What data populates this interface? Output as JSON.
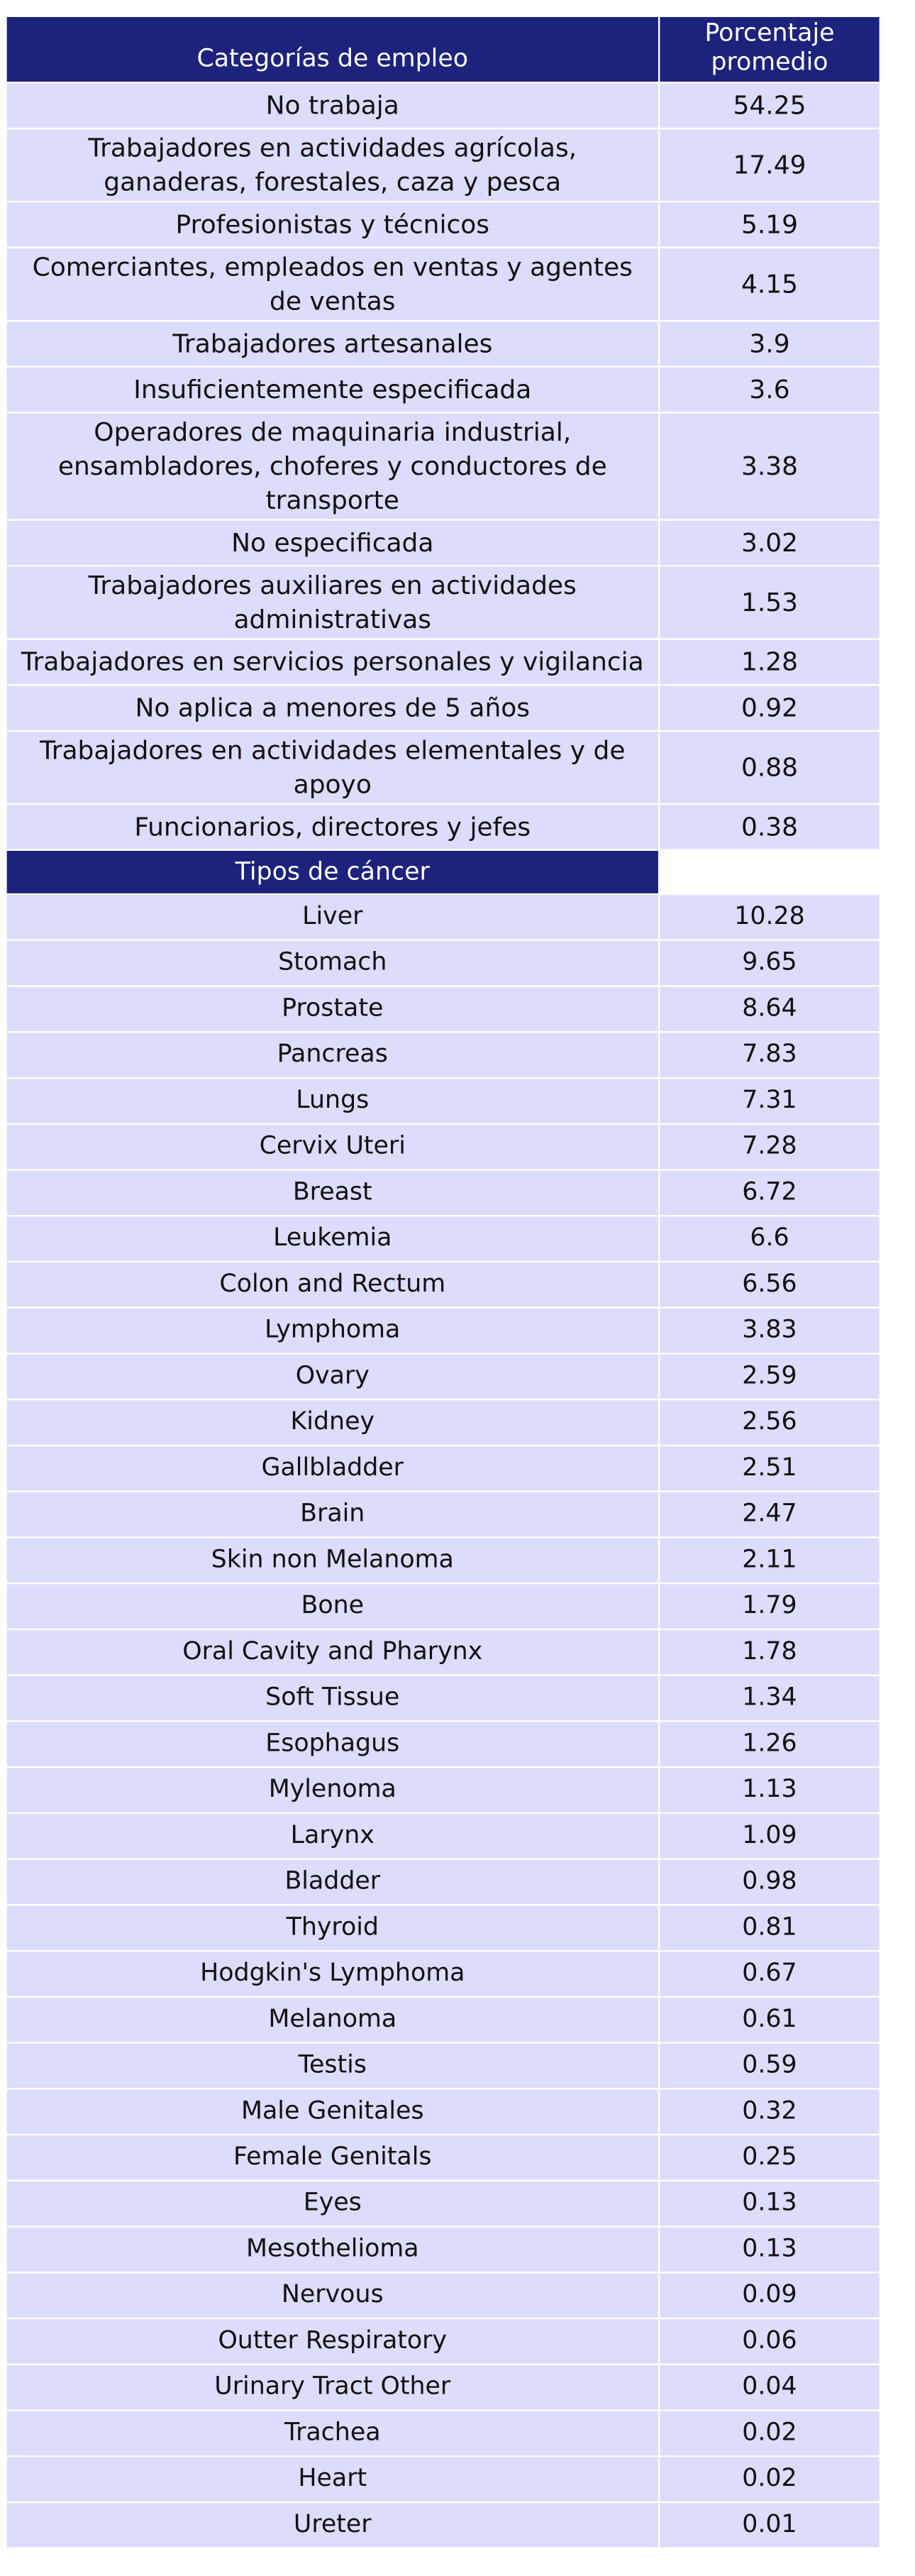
{
  "header": {
    "category_label": "Categorías de empleo",
    "percent_label_line1": "Porcentaje",
    "percent_label_line2": "promedio"
  },
  "employment_rows": [
    {
      "category": "No trabaja",
      "value": "54.25"
    },
    {
      "category": "Trabajadores en actividades agrícolas, ganaderas, forestales, caza y pesca",
      "value": "17.49"
    },
    {
      "category": "Profesionistas y técnicos",
      "value": "5.19"
    },
    {
      "category": "Comerciantes, empleados en ventas y agentes de ventas",
      "value": "4.15"
    },
    {
      "category": "Trabajadores artesanales",
      "value": "3.9"
    },
    {
      "category": "Insuficientemente especificada",
      "value": "3.6"
    },
    {
      "category": "Operadores de maquinaria industrial, ensambladores, choferes y conductores de transporte",
      "value": "3.38"
    },
    {
      "category": "No especificada",
      "value": "3.02"
    },
    {
      "category": "Trabajadores auxiliares en actividades administrativas",
      "value": "1.53"
    },
    {
      "category": "Trabajadores en servicios personales y vigilancia",
      "value": "1.28"
    },
    {
      "category": "No aplica a menores de 5 años",
      "value": "0.92"
    },
    {
      "category": "Trabajadores en actividades elementales y de apoyo",
      "value": "0.88"
    },
    {
      "category": "Funcionarios, directores y jefes",
      "value": "0.38"
    }
  ],
  "cancer_header": "Tipos de cáncer",
  "cancer_rows": [
    {
      "category": "Liver",
      "value": "10.28"
    },
    {
      "category": "Stomach",
      "value": "9.65"
    },
    {
      "category": "Prostate",
      "value": "8.64"
    },
    {
      "category": "Pancreas",
      "value": "7.83"
    },
    {
      "category": "Lungs",
      "value": "7.31"
    },
    {
      "category": "Cervix Uteri",
      "value": "7.28"
    },
    {
      "category": "Breast",
      "value": "6.72"
    },
    {
      "category": "Leukemia",
      "value": "6.6"
    },
    {
      "category": "Colon and Rectum",
      "value": "6.56"
    },
    {
      "category": "Lymphoma",
      "value": "3.83"
    },
    {
      "category": "Ovary",
      "value": "2.59"
    },
    {
      "category": "Kidney",
      "value": "2.56"
    },
    {
      "category": "Gallbladder",
      "value": "2.51"
    },
    {
      "category": "Brain",
      "value": "2.47"
    },
    {
      "category": "Skin non Melanoma",
      "value": "2.11"
    },
    {
      "category": "Bone",
      "value": "1.79"
    },
    {
      "category": "Oral Cavity and Pharynx",
      "value": "1.78"
    },
    {
      "category": "Soft Tissue",
      "value": "1.34"
    },
    {
      "category": "Esophagus",
      "value": "1.26"
    },
    {
      "category": "Mylenoma",
      "value": "1.13"
    },
    {
      "category": "Larynx",
      "value": "1.09"
    },
    {
      "category": "Bladder",
      "value": "0.98"
    },
    {
      "category": "Thyroid",
      "value": "0.81"
    },
    {
      "category": "Hodgkin's Lymphoma",
      "value": "0.67"
    },
    {
      "category": "Melanoma",
      "value": "0.61"
    },
    {
      "category": "Testis",
      "value": "0.59"
    },
    {
      "category": "Male Genitales",
      "value": "0.32"
    },
    {
      "category": "Female Genitals",
      "value": "0.25"
    },
    {
      "category": "Eyes",
      "value": "0.13"
    },
    {
      "category": "Mesothelioma",
      "value": "0.13"
    },
    {
      "category": "Nervous",
      "value": "0.09"
    },
    {
      "category": "Outter Respiratory",
      "value": "0.06"
    },
    {
      "category": "Urinary Tract Other",
      "value": "0.04"
    },
    {
      "category": "Trachea",
      "value": "0.02"
    },
    {
      "category": "Heart",
      "value": "0.02"
    },
    {
      "category": "Ureter",
      "value": "0.01"
    }
  ]
}
